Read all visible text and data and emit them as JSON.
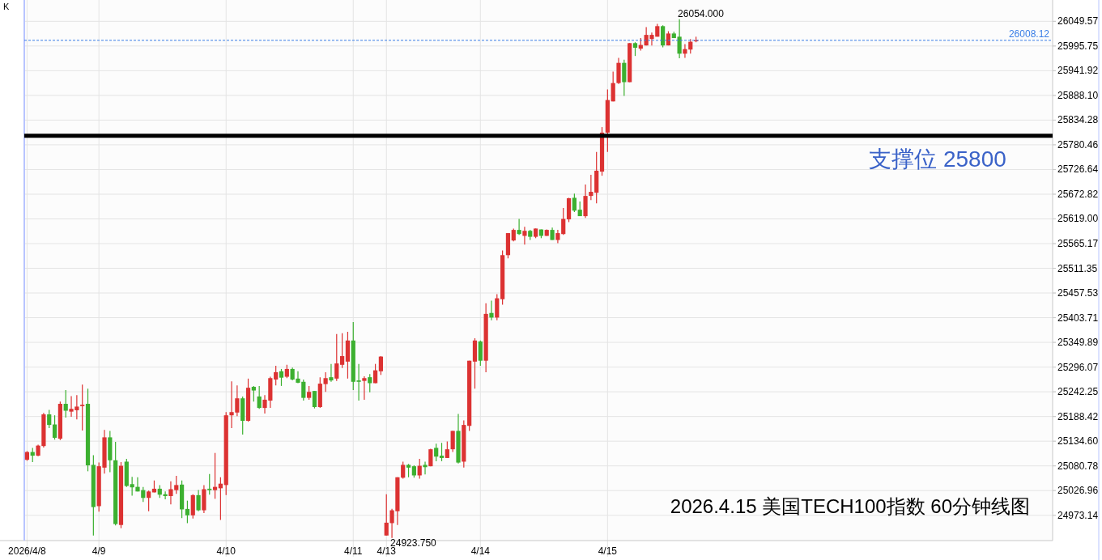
{
  "chart_data": {
    "type": "candlestick",
    "categories": [
      "2026/4/8",
      null,
      null,
      null,
      null,
      null,
      null,
      null,
      null,
      null,
      null,
      null,
      null,
      "4/9",
      null,
      null,
      null,
      null,
      null,
      null,
      null,
      null,
      null,
      null,
      null,
      null,
      null,
      null,
      null,
      null,
      null,
      null,
      null,
      null,
      null,
      null,
      "4/10",
      null,
      null,
      null,
      null,
      null,
      null,
      null,
      null,
      null,
      null,
      null,
      null,
      null,
      null,
      null,
      null,
      null,
      null,
      null,
      null,
      null,
      null,
      "4/11",
      null,
      null,
      null,
      null,
      null,
      "4/13",
      null,
      null,
      null,
      null,
      null,
      null,
      null,
      null,
      null,
      null,
      null,
      null,
      null,
      null,
      null,
      null,
      "4/14",
      null,
      null,
      null,
      null,
      null,
      null,
      null,
      null,
      null,
      null,
      null,
      null,
      null,
      null,
      null,
      null,
      null,
      null,
      null,
      null,
      null,
      null,
      "4/15",
      null,
      null,
      null,
      null,
      null,
      null,
      null,
      null,
      null,
      null,
      null,
      null,
      null,
      null,
      null,
      null,
      null,
      null,
      null,
      null,
      null,
      null,
      null,
      null,
      null,
      null,
      null,
      null,
      null,
      null,
      null,
      null,
      null,
      null,
      null,
      null,
      null,
      null,
      null,
      null,
      null,
      null,
      null,
      null,
      null,
      null,
      null,
      null,
      null,
      null,
      null,
      null,
      null,
      null,
      null,
      null,
      null,
      null,
      null,
      null,
      null,
      null,
      null,
      null,
      null,
      null,
      null,
      null,
      null,
      null,
      null,
      null,
      null,
      null,
      null,
      null,
      null,
      null,
      null,
      null
    ],
    "ohlc": [
      [
        25094,
        25113,
        25092,
        25111
      ],
      [
        25111,
        25120,
        25089,
        25103
      ],
      [
        25103,
        25127,
        25102,
        25125
      ],
      [
        25124,
        25196,
        25121,
        25193
      ],
      [
        25193,
        25203,
        25163,
        25170
      ],
      [
        25171,
        25191,
        25138,
        25142
      ],
      [
        25140,
        25221,
        25137,
        25216
      ],
      [
        25216,
        25246,
        25186,
        25201
      ],
      [
        25199,
        25233,
        25188,
        25205
      ],
      [
        25202,
        25235,
        25182,
        25210
      ],
      [
        25211,
        25258,
        25158,
        25214
      ],
      [
        25216,
        25249,
        25069,
        25082
      ],
      [
        25083,
        25104,
        24929,
        24991
      ],
      [
        24993,
        25088,
        24981,
        25080
      ],
      [
        25077,
        25159,
        25064,
        25143
      ],
      [
        25143,
        25157,
        25067,
        25093
      ],
      [
        25093,
        25133,
        24951,
        24954
      ],
      [
        24952,
        25089,
        24945,
        25081
      ],
      [
        25090,
        25096,
        25035,
        25037
      ],
      [
        25041,
        25057,
        25016,
        25034
      ],
      [
        25035,
        25056,
        25025,
        25025
      ],
      [
        25028,
        25035,
        25002,
        25011
      ],
      [
        25011,
        25027,
        24982,
        25025
      ],
      [
        25023,
        25049,
        25023,
        25031
      ],
      [
        25031,
        25039,
        25011,
        25018
      ],
      [
        25019,
        25025,
        25008,
        25015
      ],
      [
        25015,
        25047,
        24997,
        25030
      ],
      [
        25028,
        25059,
        25020,
        25039
      ],
      [
        25040,
        25049,
        24967,
        24986
      ],
      [
        24987,
        25005,
        24956,
        24973
      ],
      [
        24973,
        25019,
        24966,
        25017
      ],
      [
        25017,
        25028,
        24982,
        24984
      ],
      [
        24984,
        25039,
        24978,
        25030
      ],
      [
        25031,
        25063,
        25018,
        25028
      ],
      [
        25028,
        25109,
        25009,
        25035
      ],
      [
        25032,
        25056,
        24963,
        25042
      ],
      [
        25039,
        25198,
        25017,
        25191
      ],
      [
        25191,
        25265,
        25163,
        25198
      ],
      [
        25197,
        25256,
        25189,
        25228
      ],
      [
        25228,
        25232,
        25149,
        25179
      ],
      [
        25179,
        25271,
        25177,
        25251
      ],
      [
        25253,
        25255,
        25221,
        25245
      ],
      [
        25232,
        25255,
        25205,
        25207
      ],
      [
        25207,
        25235,
        25195,
        25225
      ],
      [
        25223,
        25275,
        25207,
        25272
      ],
      [
        25269,
        25299,
        25256,
        25285
      ],
      [
        25287,
        25292,
        25255,
        25273
      ],
      [
        25275,
        25301,
        25272,
        25292
      ],
      [
        25292,
        25295,
        25267,
        25269
      ],
      [
        25271,
        25287,
        25261,
        25262
      ],
      [
        25264,
        25269,
        25223,
        25229
      ],
      [
        25229,
        25255,
        25225,
        25242
      ],
      [
        25244,
        25244,
        25206,
        25209
      ],
      [
        25209,
        25274,
        25207,
        25260
      ],
      [
        25259,
        25285,
        25242,
        25272
      ],
      [
        25274,
        25303,
        25264,
        25267
      ],
      [
        25271,
        25368,
        25266,
        25304
      ],
      [
        25301,
        25370,
        25294,
        25320
      ],
      [
        25308,
        25373,
        25271,
        25354
      ],
      [
        25354,
        25394,
        25246,
        25264
      ],
      [
        25267,
        25303,
        25223,
        25264
      ],
      [
        25266,
        25276,
        25225,
        25272
      ],
      [
        25274,
        25281,
        25241,
        25261
      ],
      [
        25261,
        25303,
        25261,
        25289
      ],
      [
        25287,
        25320,
        25279,
        25319
      ],
      [
        24929,
        25019,
        24929,
        24957
      ],
      [
        24956,
        24987,
        24923.75,
        24984
      ],
      [
        24982,
        25056,
        24952,
        25056
      ],
      [
        25055,
        25090,
        25053,
        25083
      ],
      [
        25083,
        25085,
        25056,
        25077
      ],
      [
        25080,
        25082,
        25055,
        25060
      ],
      [
        25060,
        25096,
        25053,
        25081
      ],
      [
        25083,
        25090,
        25062,
        25078
      ],
      [
        25080,
        25118,
        25080,
        25117
      ],
      [
        25120,
        25129,
        25091,
        25101
      ],
      [
        25103,
        25131,
        25091,
        25098
      ],
      [
        25098,
        25134,
        25098,
        25117
      ],
      [
        25117,
        25157,
        25111,
        25157
      ],
      [
        25157,
        25194,
        25086,
        25088
      ],
      [
        25090,
        25180,
        25077,
        25170
      ],
      [
        25168,
        25310,
        25157,
        25310
      ],
      [
        25308,
        25359,
        25249,
        25354
      ],
      [
        25352,
        25354,
        25299,
        25310
      ],
      [
        25310,
        25435,
        25285,
        25412
      ],
      [
        25414,
        25441,
        25398,
        25404
      ],
      [
        25404,
        25455,
        25398,
        25446
      ],
      [
        25444,
        25550,
        25432,
        25540
      ],
      [
        25540,
        25588,
        25533,
        25588
      ],
      [
        25572,
        25598,
        25570,
        25595
      ],
      [
        25595,
        25619,
        25584,
        25586
      ],
      [
        25582,
        25602,
        25563,
        25593
      ],
      [
        25593,
        25595,
        25573,
        25580
      ],
      [
        25580,
        25598,
        25577,
        25598
      ],
      [
        25596,
        25596,
        25577,
        25582
      ],
      [
        25582,
        25596,
        25582,
        25595
      ],
      [
        25595,
        25600,
        25573,
        25573
      ],
      [
        25573,
        25595,
        25566,
        25588
      ],
      [
        25586,
        25643,
        25584,
        25619
      ],
      [
        25618,
        25665,
        25612,
        25664
      ],
      [
        25665,
        25674,
        25634,
        25637
      ],
      [
        25639,
        25657,
        25625,
        25625
      ],
      [
        25625,
        25694,
        25621,
        25669
      ],
      [
        25669,
        25715,
        25660,
        25678
      ],
      [
        25676,
        25765,
        25653,
        25724
      ],
      [
        25722,
        25819,
        25713,
        25807
      ],
      [
        25807,
        25901,
        25765,
        25878
      ],
      [
        25875,
        25940,
        25875,
        25915
      ],
      [
        25915,
        25970,
        25913,
        25959
      ],
      [
        25959,
        25966,
        25887,
        25917
      ],
      [
        25917,
        26002,
        25917,
        26002
      ],
      [
        26002,
        26004,
        25974,
        25992
      ],
      [
        25990,
        26013,
        25986,
        25998
      ],
      [
        25997,
        26037,
        25997,
        26020
      ],
      [
        26011,
        26025,
        25997,
        26020
      ],
      [
        26016,
        26044,
        26016,
        26039
      ],
      [
        26039,
        26041,
        25993,
        25997
      ],
      [
        25997,
        26028,
        25997,
        26023
      ],
      [
        26023,
        26027,
        26013,
        26013
      ],
      [
        26016,
        26054,
        25969,
        25979
      ],
      [
        25979,
        26000,
        25970,
        25989
      ],
      [
        25988,
        26011,
        25979,
        26005
      ],
      [
        26006,
        26016,
        26004,
        26008.12
      ],
      null,
      null,
      null,
      null,
      null,
      null,
      null,
      null,
      null,
      null,
      null,
      null,
      null,
      null,
      null,
      null,
      null,
      null,
      null,
      null,
      null,
      null,
      null,
      null,
      null,
      null,
      null,
      null,
      null,
      null,
      null,
      null,
      null,
      null,
      null,
      null,
      null,
      null,
      null,
      null,
      null,
      null,
      null,
      null,
      null,
      null,
      null,
      null,
      null,
      null,
      null,
      null,
      null,
      null,
      null,
      null,
      null,
      null,
      null,
      null,
      null,
      null,
      null,
      null
    ],
    "colors": [
      "#dc3232",
      "#3cb030",
      "#dc3232",
      "#dc3232",
      "#3cb030",
      "#3cb030",
      "#dc3232",
      "#3cb030",
      "#dc3232",
      "#dc3232",
      "#dc3232",
      "#3cb030",
      "#3cb030",
      "#dc3232",
      "#dc3232",
      "#3cb030",
      "#3cb030",
      "#dc3232",
      "#3cb030",
      "#3cb030",
      "#3cb030",
      "#3cb030",
      "#dc3232",
      "#dc3232",
      "#3cb030",
      "#3cb030",
      "#dc3232",
      "#dc3232",
      "#3cb030",
      "#3cb030",
      "#dc3232",
      "#3cb030",
      "#dc3232",
      "#3cb030",
      "#dc3232",
      "#dc3232",
      "#dc3232",
      "#dc3232",
      "#dc3232",
      "#3cb030",
      "#dc3232",
      "#3cb030",
      "#3cb030",
      "#dc3232",
      "#dc3232",
      "#dc3232",
      "#3cb030",
      "#dc3232",
      "#3cb030",
      "#3cb030",
      "#3cb030",
      "#dc3232",
      "#3cb030",
      "#dc3232",
      "#dc3232",
      "#3cb030",
      "#dc3232",
      "#dc3232",
      "#dc3232",
      "#3cb030",
      "#3cb030",
      "#dc3232",
      "#3cb030",
      "#dc3232",
      "#dc3232",
      "#dc3232",
      "#dc3232",
      "#dc3232",
      "#dc3232",
      "#3cb030",
      "#3cb030",
      "#dc3232",
      "#3cb030",
      "#dc3232",
      "#3cb030",
      "#3cb030",
      "#dc3232",
      "#dc3232",
      "#3cb030",
      "#dc3232",
      "#dc3232",
      "#dc3232",
      "#3cb030",
      "#dc3232",
      "#3cb030",
      "#dc3232",
      "#dc3232",
      "#dc3232",
      "#dc3232",
      "#3cb030",
      "#dc3232",
      "#3cb030",
      "#dc3232",
      "#3cb030",
      "#dc3232",
      "#3cb030",
      "#dc3232",
      "#dc3232",
      "#dc3232",
      "#3cb030",
      "#3cb030",
      "#dc3232",
      "#dc3232",
      "#dc3232",
      "#dc3232",
      "#dc3232",
      "#dc3232",
      "#dc3232",
      "#3cb030",
      "#dc3232",
      "#3cb030",
      "#dc3232",
      "#dc3232",
      "#dc3232",
      "#dc3232",
      "#3cb030",
      "#dc3232",
      "#3cb030",
      "#3cb030",
      "#dc3232",
      "#dc3232",
      "#dc3232",
      null,
      null,
      null,
      null,
      null,
      null,
      null,
      null,
      null,
      null,
      null,
      null,
      null,
      null,
      null,
      null,
      null,
      null,
      null,
      null,
      null,
      null,
      null,
      null,
      null,
      null,
      null,
      null,
      null,
      null,
      null,
      null,
      null,
      null,
      null,
      null,
      null,
      null,
      null,
      null,
      null,
      null,
      null,
      null,
      null,
      null,
      null,
      null,
      null,
      null,
      null,
      null,
      null,
      null,
      null,
      null,
      null,
      null,
      null,
      null,
      null,
      null,
      null,
      null
    ],
    "ylim": [
      24918,
      26096
    ],
    "yticks": [
      {
        "value": 24973.14,
        "label": "24973.14"
      },
      {
        "value": 25026.96,
        "label": "25026.96"
      },
      {
        "value": 25080.78,
        "label": "25080.78"
      },
      {
        "value": 25134.6,
        "label": "25134.60"
      },
      {
        "value": 25188.42,
        "label": "25188.42"
      },
      {
        "value": 25242.25,
        "label": "25242.25"
      },
      {
        "value": 25296.07,
        "label": "25296.07"
      },
      {
        "value": 25349.89,
        "label": "25349.89"
      },
      {
        "value": 25403.71,
        "label": "25403.71"
      },
      {
        "value": 25457.53,
        "label": "25457.53"
      },
      {
        "value": 25511.35,
        "label": "25511.35"
      },
      {
        "value": 25565.17,
        "label": "25565.17"
      },
      {
        "value": 25619,
        "label": "25619.00"
      },
      {
        "value": 25672.82,
        "label": "25672.82"
      },
      {
        "value": 25726.64,
        "label": "25726.64"
      },
      {
        "value": 25780.46,
        "label": "25780.46"
      },
      {
        "value": 25834.28,
        "label": "25834.28"
      },
      {
        "value": 25888.1,
        "label": "25888.10"
      },
      {
        "value": 25941.92,
        "label": "25941.92"
      },
      {
        "value": 25995.75,
        "label": "25995.75"
      },
      {
        "value": 26049.57,
        "label": "26049.57"
      }
    ],
    "grid": true,
    "ref_lines": [
      {
        "axis": "y",
        "value": 25800,
        "label": "支撑位 25800",
        "color": "#000000"
      },
      {
        "axis": "y",
        "value": 26008.12,
        "label": "26008.12",
        "color": "#3a7ee6",
        "line_style": "dashed"
      }
    ],
    "annotations": [
      "K",
      "2026.4.15 美国TECH100指数 60分钟线图",
      "26054.000",
      "24923.750"
    ]
  }
}
